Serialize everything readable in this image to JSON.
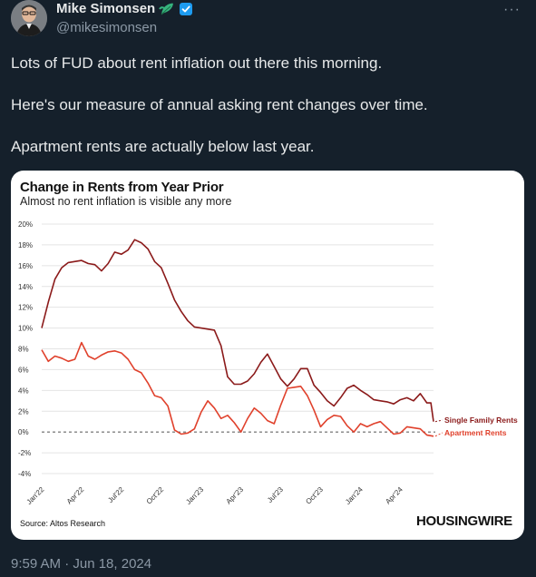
{
  "tweet": {
    "author_name": "Mike Simonsen",
    "handle": "@mikesimonsen",
    "more_label": "···",
    "paragraphs": [
      "Lots of FUD about rent inflation out there this morning.",
      "Here's our measure of annual asking rent changes over time.",
      "Apartment rents are actually below last year."
    ],
    "timestamp": "9:59 AM · Jun 18, 2024",
    "icons": [
      "leaf-emoji-icon",
      "verified-badge-icon",
      "more-options-icon"
    ]
  },
  "card": {
    "source": "Source: Altos Research",
    "brand": "HOUSINGWIRE"
  },
  "chart_data": {
    "type": "line",
    "title": "Change in Rents from Year Prior",
    "subtitle": "Almost no rent inflation is visible any more",
    "ylim": [
      -4,
      20
    ],
    "yticks": [
      "20%",
      "18%",
      "16%",
      "14%",
      "12%",
      "10%",
      "8%",
      "6%",
      "4%",
      "2%",
      "0%",
      "-2%",
      "-4%"
    ],
    "ytick_values": [
      20,
      18,
      16,
      14,
      12,
      10,
      8,
      6,
      4,
      2,
      0,
      -2,
      -4
    ],
    "xticks": [
      "Jan'22",
      "Apr'22",
      "Jul'22",
      "Oct'22",
      "Jan'23",
      "Apr'23",
      "Jul'23",
      "Oct'23",
      "Jan'24",
      "Apr'24"
    ],
    "x_range_months": [
      0,
      29.5
    ],
    "grid": true,
    "zero_line": "dashed",
    "series": [
      {
        "name": "Single Family Rents",
        "color": "#8b1a1a",
        "points": [
          [
            0,
            10
          ],
          [
            0.5,
            12.5
          ],
          [
            1,
            14.7
          ],
          [
            1.5,
            15.8
          ],
          [
            2,
            16.3
          ],
          [
            3,
            16.5
          ],
          [
            3.5,
            16.2
          ],
          [
            4,
            16.1
          ],
          [
            4.5,
            15.5
          ],
          [
            5,
            16.2
          ],
          [
            5.5,
            17.3
          ],
          [
            6,
            17.1
          ],
          [
            6.5,
            17.5
          ],
          [
            7,
            18.5
          ],
          [
            7.5,
            18.2
          ],
          [
            8,
            17.6
          ],
          [
            8.5,
            16.4
          ],
          [
            9,
            15.8
          ],
          [
            9.5,
            14.3
          ],
          [
            10,
            12.7
          ],
          [
            10.5,
            11.6
          ],
          [
            11,
            10.7
          ],
          [
            11.5,
            10.1
          ],
          [
            12,
            10.0
          ],
          [
            13,
            9.8
          ],
          [
            13.5,
            8.3
          ],
          [
            14,
            5.3
          ],
          [
            14.5,
            4.6
          ],
          [
            15,
            4.6
          ],
          [
            15.5,
            4.9
          ],
          [
            16,
            5.6
          ],
          [
            16.5,
            6.7
          ],
          [
            17,
            7.5
          ],
          [
            17.5,
            6.3
          ],
          [
            18,
            5.1
          ],
          [
            18.5,
            4.4
          ],
          [
            19,
            5.1
          ],
          [
            19.5,
            6.1
          ],
          [
            20,
            6.1
          ],
          [
            20.5,
            4.5
          ],
          [
            21,
            3.8
          ],
          [
            21.5,
            3.0
          ],
          [
            22,
            2.5
          ],
          [
            22.5,
            3.3
          ],
          [
            23,
            4.2
          ],
          [
            23.5,
            4.5
          ],
          [
            24,
            4.0
          ],
          [
            24.5,
            3.6
          ],
          [
            25,
            3.1
          ],
          [
            25.5,
            3.0
          ],
          [
            26,
            2.9
          ],
          [
            26.5,
            2.7
          ],
          [
            27,
            3.1
          ],
          [
            27.5,
            3.3
          ],
          [
            28,
            3.0
          ],
          [
            28.5,
            3.7
          ],
          [
            29,
            2.8
          ],
          [
            29.3,
            2.8
          ],
          [
            29.5,
            1.0
          ]
        ]
      },
      {
        "name": "Apartment Rents",
        "color": "#e0412c",
        "points": [
          [
            0,
            7.9
          ],
          [
            0.5,
            6.8
          ],
          [
            1,
            7.3
          ],
          [
            1.5,
            7.1
          ],
          [
            2,
            6.8
          ],
          [
            2.5,
            7.0
          ],
          [
            3,
            8.6
          ],
          [
            3.5,
            7.3
          ],
          [
            4,
            7.0
          ],
          [
            4.5,
            7.4
          ],
          [
            5,
            7.7
          ],
          [
            5.5,
            7.8
          ],
          [
            6,
            7.6
          ],
          [
            6.5,
            7.0
          ],
          [
            7,
            6.0
          ],
          [
            7.5,
            5.7
          ],
          [
            8,
            4.7
          ],
          [
            8.5,
            3.5
          ],
          [
            9,
            3.3
          ],
          [
            9.5,
            2.5
          ],
          [
            10,
            0.2
          ],
          [
            10.5,
            -0.2
          ],
          [
            11,
            -0.1
          ],
          [
            11.5,
            0.3
          ],
          [
            12,
            1.9
          ],
          [
            12.5,
            3.0
          ],
          [
            13,
            2.3
          ],
          [
            13.5,
            1.3
          ],
          [
            14,
            1.6
          ],
          [
            14.5,
            0.9
          ],
          [
            15,
            0.0
          ],
          [
            15.5,
            1.3
          ],
          [
            16,
            2.3
          ],
          [
            16.5,
            1.8
          ],
          [
            17,
            1.1
          ],
          [
            17.5,
            0.8
          ],
          [
            18,
            2.6
          ],
          [
            18.5,
            4.2
          ],
          [
            19,
            4.3
          ],
          [
            19.5,
            4.4
          ],
          [
            20,
            3.5
          ],
          [
            20.5,
            2.1
          ],
          [
            21,
            0.5
          ],
          [
            21.5,
            1.2
          ],
          [
            22,
            1.6
          ],
          [
            22.5,
            1.5
          ],
          [
            23,
            0.6
          ],
          [
            23.5,
            0.0
          ],
          [
            24,
            0.8
          ],
          [
            24.5,
            0.5
          ],
          [
            25,
            0.8
          ],
          [
            25.5,
            1.0
          ],
          [
            26,
            0.4
          ],
          [
            26.5,
            -0.2
          ],
          [
            27,
            -0.1
          ],
          [
            27.5,
            0.5
          ],
          [
            28,
            0.4
          ],
          [
            28.5,
            0.3
          ],
          [
            29,
            -0.3
          ],
          [
            29.5,
            -0.4
          ]
        ]
      }
    ]
  }
}
